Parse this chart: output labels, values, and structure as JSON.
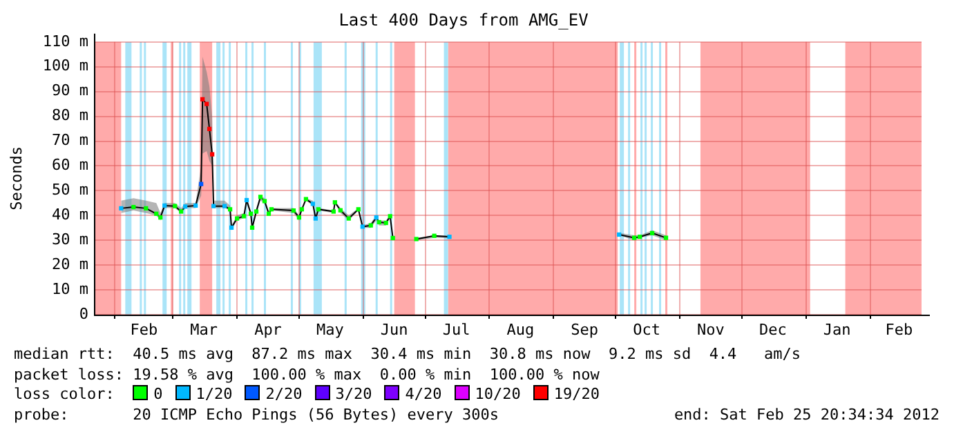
{
  "chart_data": {
    "type": "line",
    "title": "Last 400 Days from AMG_EV",
    "ylabel": "Seconds",
    "legend_title": "loss color:",
    "legend": "bottom",
    "grid": true,
    "xlim": [
      "2011-01-21T20:34",
      "2012-02-25T20:34"
    ],
    "xticks": [
      {
        "value": "2011-02-01",
        "label": null
      },
      {
        "value": "2011-02-15",
        "label": "Feb"
      },
      {
        "value": "2011-03-01",
        "label": null
      },
      {
        "value": "2011-03-16",
        "label": "Mar"
      },
      {
        "value": "2011-04-01",
        "label": null
      },
      {
        "value": "2011-04-16",
        "label": "Apr"
      },
      {
        "value": "2011-05-01",
        "label": null
      },
      {
        "value": "2011-05-16",
        "label": "May"
      },
      {
        "value": "2011-06-01",
        "label": null
      },
      {
        "value": "2011-06-16",
        "label": "Jun"
      },
      {
        "value": "2011-07-01",
        "label": null
      },
      {
        "value": "2011-07-16",
        "label": "Jul"
      },
      {
        "value": "2011-08-01",
        "label": null
      },
      {
        "value": "2011-08-16",
        "label": "Aug"
      },
      {
        "value": "2011-09-01",
        "label": null
      },
      {
        "value": "2011-09-16",
        "label": "Sep"
      },
      {
        "value": "2011-10-01",
        "label": null
      },
      {
        "value": "2011-10-16",
        "label": "Oct"
      },
      {
        "value": "2011-11-01",
        "label": null
      },
      {
        "value": "2011-11-16",
        "label": "Nov"
      },
      {
        "value": "2011-12-01",
        "label": null
      },
      {
        "value": "2011-12-16",
        "label": "Dec"
      },
      {
        "value": "2012-01-01",
        "label": null
      },
      {
        "value": "2012-01-16",
        "label": "Jan"
      },
      {
        "value": "2012-02-01",
        "label": null
      },
      {
        "value": "2012-02-15",
        "label": "Feb"
      }
    ],
    "ylim": [
      0,
      110
    ],
    "yticks": [
      0,
      {
        "value": 10,
        "label": "10 m"
      },
      {
        "value": 20,
        "label": "20 m"
      },
      {
        "value": 30,
        "label": "30 m"
      },
      {
        "value": 40,
        "label": "40 m"
      },
      {
        "value": 50,
        "label": "50 m"
      },
      {
        "value": 60,
        "label": "60 m"
      },
      {
        "value": 70,
        "label": "70 m"
      },
      {
        "value": 80,
        "label": "80 m"
      },
      {
        "value": 90,
        "label": "90 m"
      },
      {
        "value": 100,
        "label": "100 m"
      },
      {
        "value": 110,
        "label": "110 m"
      }
    ],
    "x": [
      "2011-02-04",
      "2011-02-10",
      "2011-02-16",
      "2011-02-21",
      "2011-02-23",
      "2011-02-25",
      "2011-03-02",
      "2011-03-05",
      "2011-03-07",
      "2011-03-12",
      "2011-03-14T16:00",
      "2011-03-15T08:00",
      "2011-03-17T08:00",
      "2011-03-18T16:00",
      "2011-03-20",
      "2011-03-20T16:00",
      "2011-03-26",
      "2011-03-28T16:00",
      "2011-03-29T08:00",
      "2011-04-01",
      "2011-04-04T08:00",
      "2011-04-05T16:00",
      "2011-04-07T16:00",
      "2011-04-08T08:00",
      "2011-04-10T08:00",
      "2011-04-12T08:00",
      "2011-04-14T08:00",
      "2011-04-16T08:00",
      "2011-04-17T16:00",
      "2011-04-28T08:00",
      "2011-05-01",
      "2011-05-02T08:00",
      "2011-05-04T08:00",
      "2011-05-07T16:00",
      "2011-05-09",
      "2011-05-10T08:00",
      "2011-05-17T16:00",
      "2011-05-18T08:00",
      "2011-05-21",
      "2011-05-25",
      "2011-05-29T16:00",
      "2011-05-31T16:00",
      "2011-06-04T16:00",
      "2011-06-07T08:00",
      "2011-06-08T16:00",
      "2011-06-12",
      "2011-06-14",
      "2011-06-15T08:00",
      "2011-06-20",
      "2011-06-26T16:00",
      "2011-07-05T08:00",
      "2011-07-12T16:00",
      "2011-08-01",
      "2011-10-02T16:00",
      "2011-10-10",
      "2011-10-12T16:00",
      "2011-10-18T16:00",
      "2011-10-25T08:00"
    ],
    "series": [
      {
        "color": "#000000",
        "marker": "none",
        "values": [
          42.9,
          43.4,
          42.9,
          40.7,
          39.2,
          44,
          43.8,
          41.6,
          43.6,
          44,
          52.7,
          86.9,
          85,
          74.9,
          64.7,
          43.8,
          43.8,
          42.5,
          35.1,
          38.8,
          39.7,
          46.2,
          40.7,
          35.1,
          41.6,
          47.5,
          45.8,
          40.7,
          42.5,
          42,
          39.2,
          42.5,
          46.6,
          44.7,
          38.8,
          42.5,
          41.6,
          45.3,
          42.1,
          38.8,
          42.5,
          35.5,
          36,
          39.2,
          37.3,
          37,
          39.7,
          30.9,
          null,
          30.5,
          31.8,
          31.4,
          null,
          32.3,
          31,
          31.4,
          32.9,
          31
        ],
        "lower": [
          41,
          42,
          41,
          40,
          38,
          43,
          43,
          41,
          43,
          43,
          48,
          65,
          66,
          62,
          60,
          43,
          43,
          42,
          34,
          38,
          39,
          45,
          40,
          34,
          41,
          46,
          45,
          40,
          42,
          41,
          38,
          42,
          46,
          44,
          38,
          42,
          41,
          45,
          41,
          38,
          42,
          35,
          35,
          38,
          36,
          36,
          39,
          30,
          null,
          30,
          31,
          31,
          null,
          32,
          30,
          31,
          32,
          30
        ],
        "upper": [
          46,
          47,
          46,
          45,
          41,
          45,
          45,
          43,
          45,
          45,
          60,
          104,
          98,
          92,
          80,
          46,
          46,
          44,
          36,
          40,
          41,
          47,
          42,
          36,
          43,
          48,
          47,
          42,
          43,
          43,
          40,
          43,
          47,
          46,
          40,
          43,
          42,
          46,
          43,
          40,
          43,
          36,
          37,
          40,
          38,
          38,
          40,
          32,
          null,
          31,
          32,
          32,
          null,
          33,
          32,
          32,
          34,
          32
        ]
      },
      {
        "type": "scatter",
        "name": "0",
        "color": "#00ff00",
        "marker": "square",
        "x": [
          "2011-02-10",
          "2011-02-16",
          "2011-02-21",
          "2011-02-23",
          "2011-03-02",
          "2011-03-05",
          "2011-03-28T16:00",
          "2011-04-01",
          "2011-04-04T08:00",
          "2011-04-07T16:00",
          "2011-04-08T08:00",
          "2011-04-10T08:00",
          "2011-04-12T08:00",
          "2011-04-14T08:00",
          "2011-04-16T08:00",
          "2011-04-17T16:00",
          "2011-04-28T08:00",
          "2011-05-01",
          "2011-05-02T08:00",
          "2011-05-04T08:00",
          "2011-05-10T08:00",
          "2011-05-17T16:00",
          "2011-05-18T08:00",
          "2011-05-21",
          "2011-05-25",
          "2011-05-29T16:00",
          "2011-06-04T16:00",
          "2011-06-08T16:00",
          "2011-06-12",
          "2011-06-14",
          "2011-06-15T08:00",
          "2011-06-26T16:00",
          "2011-07-05T08:00",
          "2011-10-10",
          "2011-10-12T16:00",
          "2011-10-18T16:00",
          "2011-10-25T08:00"
        ],
        "values": [
          43.4,
          42.9,
          40.7,
          39.2,
          43.8,
          41.6,
          42.5,
          38.8,
          39.7,
          40.7,
          35.1,
          41.6,
          47.5,
          45.8,
          40.7,
          42.5,
          42,
          39.2,
          42.5,
          46.6,
          42.5,
          41.6,
          45.3,
          42.1,
          38.8,
          42.5,
          36,
          37.3,
          37,
          39.7,
          30.9,
          30.5,
          31.8,
          31,
          31.4,
          32.9,
          31
        ]
      },
      {
        "type": "scatter",
        "name": "1/20",
        "color": "#00b8ff",
        "marker": "square",
        "x": [
          "2011-02-04",
          "2011-02-25",
          "2011-03-07",
          "2011-03-12",
          "2011-03-20T16:00",
          "2011-03-26",
          "2011-03-29T08:00",
          "2011-04-05T16:00",
          "2011-05-07T16:00",
          "2011-05-09",
          "2011-05-31T16:00",
          "2011-06-07T08:00",
          "2011-07-12T16:00",
          "2011-10-02T16:00"
        ],
        "values": [
          42.9,
          44,
          43.6,
          44,
          43.8,
          43.8,
          35.1,
          46.2,
          44.7,
          38.8,
          35.5,
          39.2,
          31.4,
          32.3
        ]
      },
      {
        "type": "scatter",
        "name": "2/20",
        "color": "#0059ff",
        "marker": "square",
        "x": [
          "2011-03-14T16:00"
        ],
        "values": [
          52.7
        ]
      },
      {
        "type": "scatter",
        "name": "3/20",
        "color": "#5e00ff",
        "marker": "square",
        "values": [
          null,
          null,
          null,
          null,
          null,
          null,
          null,
          null,
          null,
          null,
          null,
          null,
          null,
          null,
          null,
          null,
          null,
          null,
          null,
          null,
          null,
          null,
          null,
          null,
          null,
          null,
          null,
          null,
          null,
          null,
          null,
          null,
          null,
          null,
          null,
          null,
          null,
          null,
          null,
          null,
          null,
          null,
          null,
          null,
          null,
          null,
          null,
          null,
          null,
          null,
          null,
          null,
          null,
          null,
          null,
          null,
          null,
          null
        ]
      },
      {
        "type": "scatter",
        "name": "4/20",
        "color": "#7e00ff",
        "marker": "square",
        "values": [
          null,
          null,
          null,
          null,
          null,
          null,
          null,
          null,
          null,
          null,
          null,
          null,
          null,
          null,
          null,
          null,
          null,
          null,
          null,
          null,
          null,
          null,
          null,
          null,
          null,
          null,
          null,
          null,
          null,
          null,
          null,
          null,
          null,
          null,
          null,
          null,
          null,
          null,
          null,
          null,
          null,
          null,
          null,
          null,
          null,
          null,
          null,
          null,
          null,
          null,
          null,
          null,
          null,
          null,
          null,
          null,
          null,
          null
        ]
      },
      {
        "type": "scatter",
        "name": "10/20",
        "color": "#dd00ff",
        "marker": "square",
        "values": [
          null,
          null,
          null,
          null,
          null,
          null,
          null,
          null,
          null,
          null,
          null,
          null,
          null,
          null,
          null,
          null,
          null,
          null,
          null,
          null,
          null,
          null,
          null,
          null,
          null,
          null,
          null,
          null,
          null,
          null,
          null,
          null,
          null,
          null,
          null,
          null,
          null,
          null,
          null,
          null,
          null,
          null,
          null,
          null,
          null,
          null,
          null,
          null,
          null,
          null,
          null,
          null,
          null,
          null,
          null,
          null,
          null,
          null
        ]
      },
      {
        "type": "scatter",
        "name": "19/20",
        "color": "#ff0000",
        "marker": "square",
        "x": [
          "2011-03-15T08:00",
          "2011-03-17T08:00",
          "2011-03-18T16:00",
          "2011-03-20"
        ],
        "values": [
          86.9,
          85,
          74.9,
          64.7
        ]
      }
    ],
    "bands": [
      {
        "axis": "x",
        "from": "2011-01-21T20:34",
        "to": "2011-02-04",
        "color": "#ffaaaa"
      },
      {
        "axis": "x",
        "from": "2011-03-14",
        "to": "2011-03-20",
        "color": "#ffaaaa"
      },
      {
        "axis": "x",
        "from": "2011-06-16",
        "to": "2011-06-26",
        "color": "#ffaaaa"
      },
      {
        "axis": "x",
        "from": "2011-07-12",
        "to": "2011-10-02",
        "color": "#ffaaaa"
      },
      {
        "axis": "x",
        "from": "2011-10-10",
        "to": "2011-10-11",
        "color": "#ffaaaa"
      },
      {
        "axis": "x",
        "from": "2011-10-25",
        "to": "2011-10-26",
        "color": "#ffaaaa"
      },
      {
        "axis": "x",
        "from": "2011-11-11",
        "to": "2012-01-03",
        "color": "#ffaaaa"
      },
      {
        "axis": "x",
        "from": "2012-01-20",
        "to": "2012-02-25T20:34",
        "color": "#ffaaaa"
      },
      {
        "axis": "x",
        "from": "2011-02-28",
        "to": "2011-03-01",
        "color": "#ffaaaa"
      },
      {
        "axis": "x",
        "from": "2011-02-06",
        "to": "2011-02-09",
        "color": "#aae4f8"
      },
      {
        "axis": "x",
        "from": "2011-02-13",
        "to": "2011-02-14",
        "color": "#aae4f8"
      },
      {
        "axis": "x",
        "from": "2011-02-15",
        "to": "2011-02-16",
        "color": "#aae4f8"
      },
      {
        "axis": "x",
        "from": "2011-02-24",
        "to": "2011-02-26",
        "color": "#aae4f8"
      },
      {
        "axis": "x",
        "from": "2011-03-04",
        "to": "2011-03-05",
        "color": "#aae4f8"
      },
      {
        "axis": "x",
        "from": "2011-03-06",
        "to": "2011-03-07",
        "color": "#aae4f8"
      },
      {
        "axis": "x",
        "from": "2011-03-08",
        "to": "2011-03-10",
        "color": "#aae4f8"
      },
      {
        "axis": "x",
        "from": "2011-03-22",
        "to": "2011-03-24",
        "color": "#aae4f8"
      },
      {
        "axis": "x",
        "from": "2011-03-25",
        "to": "2011-03-26",
        "color": "#aae4f8"
      },
      {
        "axis": "x",
        "from": "2011-03-28",
        "to": "2011-03-29",
        "color": "#aae4f8"
      },
      {
        "axis": "x",
        "from": "2011-04-05",
        "to": "2011-04-06",
        "color": "#aae4f8"
      },
      {
        "axis": "x",
        "from": "2011-04-08",
        "to": "2011-04-09",
        "color": "#aae4f8"
      },
      {
        "axis": "x",
        "from": "2011-04-14",
        "to": "2011-04-15",
        "color": "#aae4f8"
      },
      {
        "axis": "x",
        "from": "2011-04-27",
        "to": "2011-04-28",
        "color": "#aae4f8"
      },
      {
        "axis": "x",
        "from": "2011-05-01",
        "to": "2011-05-02",
        "color": "#aae4f8"
      },
      {
        "axis": "x",
        "from": "2011-05-08",
        "to": "2011-05-12",
        "color": "#aae4f8"
      },
      {
        "axis": "x",
        "from": "2011-05-23",
        "to": "2011-05-24",
        "color": "#aae4f8"
      },
      {
        "axis": "x",
        "from": "2011-05-31",
        "to": "2011-06-02",
        "color": "#aae4f8"
      },
      {
        "axis": "x",
        "from": "2011-06-07",
        "to": "2011-06-08",
        "color": "#aae4f8"
      },
      {
        "axis": "x",
        "from": "2011-06-14",
        "to": "2011-06-15",
        "color": "#aae4f8"
      },
      {
        "axis": "x",
        "from": "2011-07-10",
        "to": "2011-07-12",
        "color": "#aae4f8"
      },
      {
        "axis": "x",
        "from": "2011-10-03",
        "to": "2011-10-05",
        "color": "#aae4f8"
      },
      {
        "axis": "x",
        "from": "2011-10-07",
        "to": "2011-10-08",
        "color": "#aae4f8"
      },
      {
        "axis": "x",
        "from": "2011-10-13",
        "to": "2011-10-14",
        "color": "#aae4f8"
      },
      {
        "axis": "x",
        "from": "2011-10-15",
        "to": "2011-10-16",
        "color": "#aae4f8"
      },
      {
        "axis": "x",
        "from": "2011-10-18",
        "to": "2011-10-19",
        "color": "#aae4f8"
      },
      {
        "axis": "x",
        "from": "2011-10-22",
        "to": "2011-10-23",
        "color": "#aae4f8"
      }
    ],
    "annotations": [
      "median rtt:  40.5 ms avg  87.2 ms max  30.4 ms min  30.8 ms now  9.2 ms sd  4.4   am/s",
      "packet loss: 19.58 % avg  100.00 % max  0.00 % min  100.00 % now",
      "probe:       20 ICMP Echo Pings (56 Bytes) every 300s",
      "end: Sat Feb 25 20:34:34 2012"
    ]
  }
}
